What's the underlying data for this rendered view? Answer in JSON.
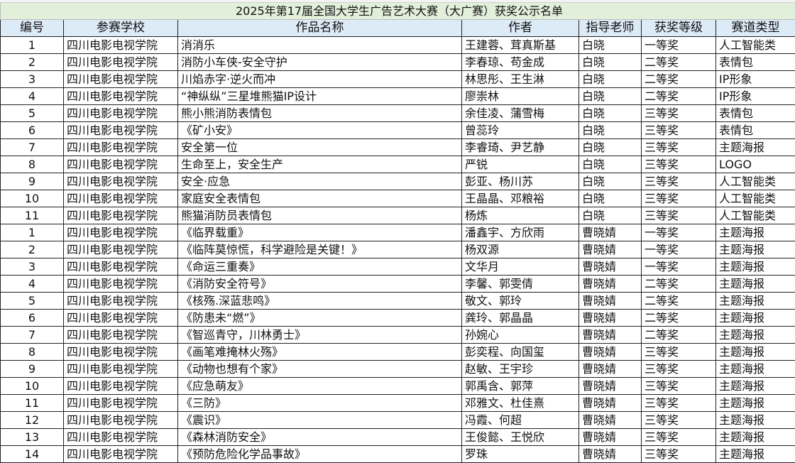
{
  "title": "2025年第17届全国大学生广告艺术大赛（大广赛）获奖公示名单",
  "headers": [
    "编号",
    "参赛学校",
    "作品名称",
    "作者",
    "指导老师",
    "获奖等级",
    "赛道类型"
  ],
  "rows": [
    [
      "1",
      "四川电影电视学院",
      "消消乐",
      "王建蓉、茸真斯基",
      "白晓",
      "一等奖",
      "人工智能类"
    ],
    [
      "2",
      "四川电影电视学院",
      "消防小车侠-安全守护",
      "李春琼、苟金成",
      "白晓",
      "二等奖",
      "表情包"
    ],
    [
      "3",
      "四川电影电视学院",
      "川焰赤字·逆火而冲",
      "林思彤、王生淋",
      "白晓",
      "二等奖",
      "IP形象"
    ],
    [
      "4",
      "四川电影电视学院",
      "“神纵纵”三星堆熊猫IP设计",
      "廖崇林",
      "白晓",
      "二等奖",
      "IP形象"
    ],
    [
      "5",
      "四川电影电视学院",
      "熊小熊消防表情包",
      "余佳凌、蒲雪梅",
      "白晓",
      "三等奖",
      "表情包"
    ],
    [
      "6",
      "四川电影电视学院",
      "《矿小安》",
      "曾蕊玲",
      "白晓",
      "三等奖",
      "表情包"
    ],
    [
      "7",
      "四川电影电视学院",
      "安全第一位",
      "李睿琦、尹艺静",
      "白晓",
      "三等奖",
      "主题海报"
    ],
    [
      "8",
      "四川电影电视学院",
      "生命至上，安全生产",
      "严锐",
      "白晓",
      "三等奖",
      "LOGO"
    ],
    [
      "9",
      "四川电影电视学院",
      "安全·应急",
      "彭亚、杨川苏",
      "白晓",
      "三等奖",
      "人工智能类"
    ],
    [
      "10",
      "四川电影电视学院",
      "家庭安全表情包",
      "王晶晶、邓粮裕",
      "白晓",
      "三等奖",
      "人工智能类"
    ],
    [
      "11",
      "四川电影电视学院",
      "熊猫消防员表情包",
      "杨炼",
      "白晓",
      "三等奖",
      "人工智能类"
    ],
    [
      "1",
      "四川电影电视学院",
      "《临界载重》",
      "潘鑫宇、方欣雨",
      "曹晓婧",
      "一等奖",
      "主题海报"
    ],
    [
      "2",
      "四川电影电视学院",
      "《临阵莫惊慌，科学避险是关键！》",
      "杨双源",
      "曹晓婧",
      "一等奖",
      "主题海报"
    ],
    [
      "3",
      "四川电影电视学院",
      "《命运三重奏》",
      "文华月",
      "曹晓婧",
      "一等奖",
      "主题海报"
    ],
    [
      "4",
      "四川电影电视学院",
      "《消防安全符号》",
      "李馨、郭雯倩",
      "曹晓婧",
      "二等奖",
      "主题海报"
    ],
    [
      "5",
      "四川电影电视学院",
      "《核殇.深蓝悲鸣》",
      "敬文、郭玲",
      "曹晓婧",
      "二等奖",
      "主题海报"
    ],
    [
      "6",
      "四川电影电视学院",
      "《防患未“燃”》",
      "龚玲、郭晶晶",
      "曹晓婧",
      "二等奖",
      "主题海报"
    ],
    [
      "7",
      "四川电影电视学院",
      "《智巡青守，川林勇士》",
      "孙婉心",
      "曹晓婧",
      "二等奖",
      "主题海报"
    ],
    [
      "8",
      "四川电影电视学院",
      "《画笔难掩林火殇》",
      "彭奕程、向国玺",
      "曹晓婧",
      "三等奖",
      "主题海报"
    ],
    [
      "9",
      "四川电影电视学院",
      "《动物也想有个家》",
      "赵敏、王宇珍",
      "曹晓婧",
      "三等奖",
      "主题海报"
    ],
    [
      "10",
      "四川电影电视学院",
      "《应急萌友》",
      "郭禹含、郭萍",
      "曹晓婧",
      "三等奖",
      "主题海报"
    ],
    [
      "11",
      "四川电影电视学院",
      "《三防》",
      "邓雅文、杜佳熹",
      "曹晓婧",
      "三等奖",
      "主题海报"
    ],
    [
      "12",
      "四川电影电视学院",
      "《震识》",
      "冯霞、何超",
      "曹晓婧",
      "三等奖",
      "主题海报"
    ],
    [
      "13",
      "四川电影电视学院",
      "《森林消防安全》",
      "王俊懿、王悦欣",
      "曹晓婧",
      "三等奖",
      "主题海报"
    ],
    [
      "14",
      "四川电影电视学院",
      "《预防危险化学品事故》",
      "罗珠",
      "曹晓婧",
      "三等奖",
      "主题海报"
    ]
  ]
}
